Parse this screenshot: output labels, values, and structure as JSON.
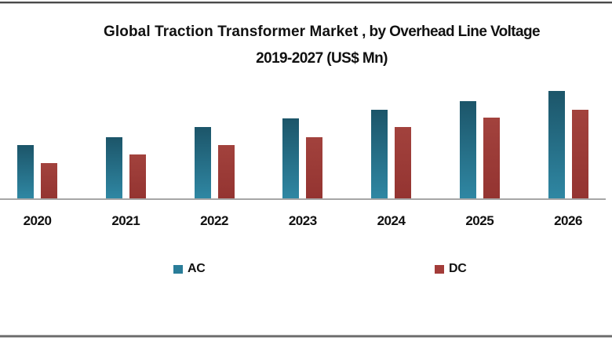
{
  "title": {
    "line1_bold": "Global Traction Transformer Market",
    "line1_rest": " , by Overhead Line Voltage",
    "line2": "2019-2027 (US$ Mn)"
  },
  "colors": {
    "ac_top": "#1c5569",
    "ac_bottom": "#2f87a3",
    "dc_top": "#a2423d",
    "dc_bottom": "#943431",
    "axis_line": "#a6a6a6",
    "background": "#ffffff"
  },
  "chart_data": {
    "type": "bar",
    "title": "Global Traction Transformer Market , by Overhead Line Voltage 2019-2027 (US$ Mn)",
    "categories": [
      "2020",
      "2021",
      "2022",
      "2023",
      "2024",
      "2025",
      "2026"
    ],
    "series": [
      {
        "name": "AC",
        "color": "#2a7d99",
        "values": [
          68,
          78,
          91,
          102,
          113,
          124,
          137
        ]
      },
      {
        "name": "DC",
        "color": "#a33c39",
        "values": [
          45,
          56,
          68,
          78,
          91,
          103,
          113
        ]
      }
    ],
    "xlabel": "",
    "ylabel": "",
    "value_axis_visible": false,
    "value_units": "relative (y-axis unlabeled in chart)",
    "ylim": [
      0,
      150
    ],
    "grid": false,
    "legend_position": "bottom"
  }
}
